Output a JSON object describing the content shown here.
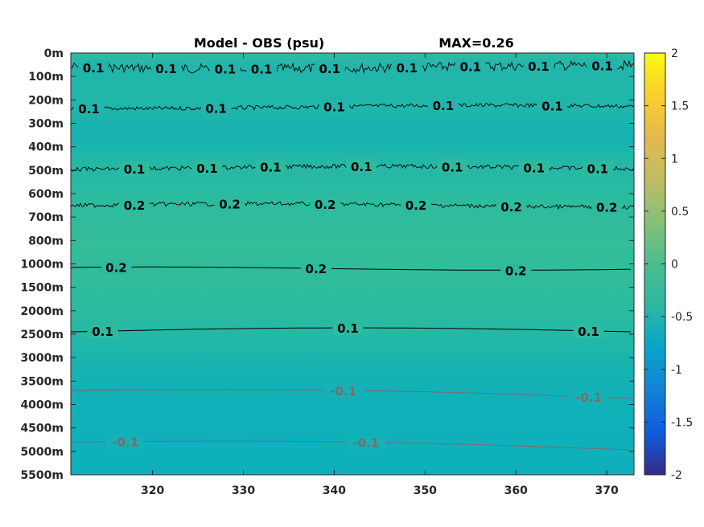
{
  "chart_data": {
    "type": "heatmap",
    "title_left": "Model - OBS (psu)",
    "title_right": "MAX=0.26",
    "xlabel": "",
    "ylabel": "",
    "xlim": [
      311,
      373
    ],
    "x_ticks": [
      320,
      330,
      340,
      350,
      360,
      370
    ],
    "y_ticks": [
      "0m",
      "100m",
      "200m",
      "300m",
      "400m",
      "500m",
      "600m",
      "700m",
      "800m",
      "1000m",
      "1500m",
      "2000m",
      "2500m",
      "3000m",
      "3500m",
      "4000m",
      "4500m",
      "5000m",
      "5500m"
    ],
    "colorbar": {
      "range": [
        -2,
        2
      ],
      "ticks": [
        "2",
        "1.5",
        "1",
        "0.5",
        "0",
        "-0.5",
        "-1",
        "-1.5",
        "-2"
      ],
      "colormap": "parula"
    },
    "colors": {
      "contour_positive": "#000000",
      "contour_negative": "#7a6b6b"
    },
    "contours": [
      {
        "value": 0.1,
        "depth_level": 0.6,
        "labels": [
          {
            "text": "0.1",
            "x": 313.5
          },
          {
            "text": "0.1",
            "x": 321.5
          },
          {
            "text": "0.1",
            "x": 328
          },
          {
            "text": "0.1",
            "x": 332
          },
          {
            "text": "0.1",
            "x": 339.5
          },
          {
            "text": "0.1",
            "x": 348
          },
          {
            "text": "0.1",
            "x": 355
          },
          {
            "text": "0.1",
            "x": 362.5
          },
          {
            "text": "0.1",
            "x": 369.5
          }
        ]
      },
      {
        "value": 0.1,
        "depth_level": 2.3,
        "labels": [
          {
            "text": "0.1",
            "x": 313
          },
          {
            "text": "0.1",
            "x": 327
          },
          {
            "text": "0.1",
            "x": 340
          },
          {
            "text": "0.1",
            "x": 352
          },
          {
            "text": "0.1",
            "x": 364
          }
        ]
      },
      {
        "value": 0.1,
        "depth_level": 4.9,
        "labels": [
          {
            "text": "0.1",
            "x": 318
          },
          {
            "text": "0.1",
            "x": 326
          },
          {
            "text": "0.1",
            "x": 333
          },
          {
            "text": "0.1",
            "x": 343
          },
          {
            "text": "0.1",
            "x": 353
          },
          {
            "text": "0.1",
            "x": 362
          },
          {
            "text": "0.1",
            "x": 369
          }
        ]
      },
      {
        "value": 0.2,
        "depth_level": 6.5,
        "labels": [
          {
            "text": "0.2",
            "x": 318
          },
          {
            "text": "0.2",
            "x": 328.5
          },
          {
            "text": "0.2",
            "x": 339
          },
          {
            "text": "0.2",
            "x": 349
          },
          {
            "text": "0.2",
            "x": 359.5
          },
          {
            "text": "0.2",
            "x": 370
          }
        ]
      },
      {
        "value": 0.2,
        "depth_level": 9.2,
        "labels": [
          {
            "text": "0.2",
            "x": 316
          },
          {
            "text": "0.2",
            "x": 338
          },
          {
            "text": "0.2",
            "x": 360
          }
        ]
      },
      {
        "value": 0.1,
        "depth_level": 11.9,
        "labels": [
          {
            "text": "0.1",
            "x": 314.5
          },
          {
            "text": "0.1",
            "x": 341.5
          },
          {
            "text": "0.1",
            "x": 368
          }
        ]
      },
      {
        "value": -0.1,
        "depth_level": 14.4,
        "labels": [
          {
            "text": "-0.1",
            "x": 341
          },
          {
            "text": "-0.1",
            "x": 368
          }
        ]
      },
      {
        "value": -0.1,
        "depth_level": 16.6,
        "labels": [
          {
            "text": "-0.1",
            "x": 317
          },
          {
            "text": "-0.1",
            "x": 343.5
          }
        ]
      }
    ]
  }
}
